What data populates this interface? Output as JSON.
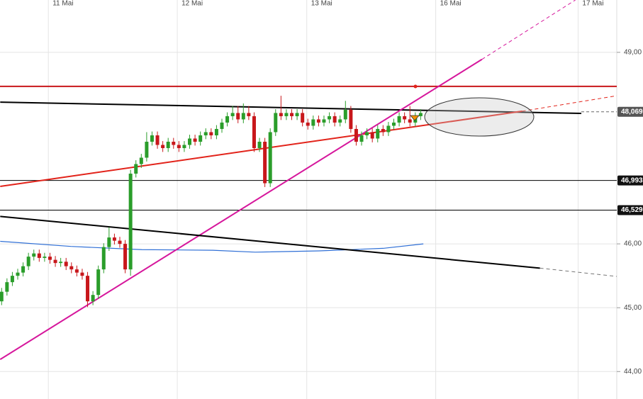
{
  "chart_data": {
    "type": "candlestick",
    "x": [
      0,
      1,
      2,
      3,
      4,
      5,
      6,
      7,
      8,
      9,
      10,
      11,
      12,
      13,
      14,
      15,
      16,
      17,
      18,
      19,
      20,
      21,
      22,
      23,
      24,
      25,
      26,
      27,
      28,
      29,
      30,
      31,
      32,
      33,
      34,
      35,
      36,
      37,
      38,
      39,
      40,
      41,
      42,
      43,
      44,
      45,
      46,
      47,
      48,
      49,
      50,
      51,
      52,
      53,
      54,
      55,
      56,
      57,
      58,
      59,
      60,
      61,
      62,
      63,
      64,
      65,
      66,
      67,
      68,
      69,
      70,
      71,
      72,
      73,
      74,
      75,
      76,
      77,
      78
    ],
    "open": [
      45.1,
      45.25,
      45.4,
      45.5,
      45.55,
      45.65,
      45.8,
      45.85,
      45.78,
      45.8,
      45.75,
      45.7,
      45.72,
      45.65,
      45.6,
      45.55,
      45.5,
      45.1,
      45.2,
      45.6,
      45.95,
      46.1,
      46.05,
      46.0,
      45.6,
      47.1,
      47.25,
      47.35,
      47.6,
      47.7,
      47.55,
      47.5,
      47.6,
      47.55,
      47.5,
      47.55,
      47.65,
      47.6,
      47.7,
      47.75,
      47.7,
      47.8,
      47.9,
      48.0,
      48.05,
      47.95,
      48.05,
      48.0,
      47.5,
      47.6,
      46.95,
      47.75,
      48.05,
      48.0,
      48.05,
      48.0,
      48.05,
      47.9,
      47.85,
      47.95,
      47.9,
      47.95,
      48.0,
      47.9,
      47.95,
      48.1,
      47.8,
      47.6,
      47.7,
      47.75,
      47.65,
      47.8,
      47.75,
      47.85,
      47.9,
      48.0,
      47.95,
      47.9,
      48.0
    ],
    "high": [
      45.31,
      45.46,
      45.56,
      45.61,
      45.71,
      45.86,
      45.91,
      45.91,
      45.86,
      45.86,
      45.81,
      45.78,
      45.78,
      45.71,
      45.66,
      45.61,
      45.56,
      45.26,
      45.66,
      46.01,
      46.26,
      46.16,
      46.11,
      46.06,
      47.16,
      47.31,
      47.41,
      47.75,
      47.76,
      47.76,
      47.61,
      47.66,
      47.66,
      47.61,
      47.61,
      47.71,
      47.71,
      47.76,
      47.81,
      47.81,
      47.86,
      47.96,
      48.06,
      48.16,
      48.16,
      48.2,
      48.16,
      48.06,
      47.66,
      47.66,
      47.81,
      48.11,
      48.32,
      48.11,
      48.11,
      48.11,
      48.11,
      47.96,
      48.01,
      48.01,
      48.01,
      48.06,
      48.06,
      48.01,
      48.24,
      48.16,
      47.86,
      47.76,
      47.81,
      47.81,
      47.86,
      47.86,
      47.91,
      47.96,
      48.06,
      48.06,
      48.16,
      48.06,
      48.11
    ],
    "low": [
      45.04,
      45.19,
      45.34,
      45.44,
      45.49,
      45.59,
      45.74,
      45.72,
      45.72,
      45.69,
      45.64,
      45.64,
      45.59,
      45.54,
      45.49,
      45.44,
      45.01,
      45.04,
      45.14,
      45.54,
      45.89,
      45.99,
      45.94,
      45.54,
      45.5,
      47.04,
      47.19,
      47.29,
      47.54,
      47.49,
      47.44,
      47.44,
      47.49,
      47.44,
      47.44,
      47.49,
      47.54,
      47.54,
      47.64,
      47.64,
      47.64,
      47.74,
      47.84,
      47.94,
      47.89,
      47.89,
      47.94,
      47.44,
      47.44,
      46.89,
      46.89,
      47.69,
      47.94,
      47.94,
      47.94,
      47.94,
      47.84,
      47.79,
      47.79,
      47.84,
      47.84,
      47.89,
      47.84,
      47.84,
      47.89,
      47.74,
      47.54,
      47.54,
      47.64,
      47.59,
      47.59,
      47.69,
      47.69,
      47.79,
      47.84,
      47.89,
      47.84,
      47.84,
      47.94
    ],
    "close": [
      45.25,
      45.4,
      45.5,
      45.55,
      45.65,
      45.8,
      45.85,
      45.78,
      45.8,
      45.75,
      45.7,
      45.72,
      45.65,
      45.6,
      45.55,
      45.5,
      45.1,
      45.2,
      45.6,
      45.95,
      46.1,
      46.05,
      46.0,
      45.6,
      47.1,
      47.25,
      47.35,
      47.6,
      47.7,
      47.55,
      47.5,
      47.6,
      47.55,
      47.5,
      47.55,
      47.65,
      47.6,
      47.7,
      47.75,
      47.7,
      47.8,
      47.9,
      48.0,
      48.05,
      47.95,
      48.05,
      48.0,
      47.5,
      47.6,
      46.95,
      47.75,
      48.05,
      48.0,
      48.05,
      48.0,
      48.05,
      47.9,
      47.85,
      47.95,
      47.9,
      47.95,
      48.0,
      47.9,
      47.95,
      48.1,
      47.8,
      47.6,
      47.7,
      47.75,
      47.65,
      47.8,
      47.75,
      47.85,
      47.9,
      48.0,
      47.95,
      47.9,
      48.0,
      48.05
    ],
    "up_color": "#2a9d2a",
    "down_color": "#c8171b",
    "xlim": [
      -0.3,
      114.5
    ],
    "xticks": [
      {
        "value": 8.7,
        "label": "11 Mai"
      },
      {
        "value": 32.7,
        "label": "12 Mai"
      },
      {
        "value": 56.8,
        "label": "13 Mai"
      },
      {
        "value": 80.8,
        "label": "16 Mai"
      },
      {
        "value": 107.3,
        "label": "17 Mai"
      }
    ],
    "ylim": [
      43.57,
      49.82
    ],
    "yticks": [
      {
        "value": 44,
        "label": "44,00"
      },
      {
        "value": 45,
        "label": "45,00"
      },
      {
        "value": 46,
        "label": "46,00"
      },
      {
        "value": 49,
        "label": "49,00"
      }
    ],
    "grid": true,
    "levels": [
      {
        "value": 48.069,
        "label": "48,069",
        "color": "#666666",
        "dashed": true
      },
      {
        "value": 46.993,
        "label": "46,993",
        "color": "#000000",
        "dashed": false
      },
      {
        "value": 46.529,
        "label": "46,529",
        "color": "#000000",
        "dashed": false
      }
    ],
    "trendlines": [
      {
        "color": "#c8171b",
        "dashed": false,
        "x": [
          -0.3,
          114.5
        ],
        "y": [
          48.467,
          48.467
        ]
      },
      {
        "color": "#000000",
        "dashed": false,
        "x": [
          -0.26,
          107.9
        ],
        "y": [
          48.22,
          48.044
        ]
      },
      {
        "color": "#e2231a",
        "dashed": false,
        "x": [
          -0.26,
          96.9
        ],
        "y": [
          46.9,
          48.078
        ]
      },
      {
        "color": "#e2231a",
        "dashed": true,
        "x": [
          96.9,
          114.5
        ],
        "y": [
          48.078,
          48.32
        ]
      },
      {
        "color": "#d6179c",
        "dashed": false,
        "x": [
          -0.26,
          89.4
        ],
        "y": [
          44.19,
          48.89
        ]
      },
      {
        "color": "#d6179c",
        "dashed": true,
        "x": [
          89.4,
          106.8
        ],
        "y": [
          48.89,
          49.82
        ]
      },
      {
        "color": "#000000",
        "dashed": false,
        "x": [
          -0.26,
          100.2
        ],
        "y": [
          46.43,
          45.62
        ]
      },
      {
        "color": "#777777",
        "dashed": true,
        "x": [
          100.2,
          114.5
        ],
        "y": [
          45.62,
          45.49
        ]
      }
    ],
    "moving_average": {
      "color": "#2f6fd6",
      "x": [
        -0.26,
        12.9,
        26.1,
        39.3,
        47.2,
        59.1,
        71.0,
        78.5
      ],
      "y": [
        46.04,
        45.96,
        45.91,
        45.9,
        45.87,
        45.89,
        45.93,
        46.0
      ]
    }
  }
}
